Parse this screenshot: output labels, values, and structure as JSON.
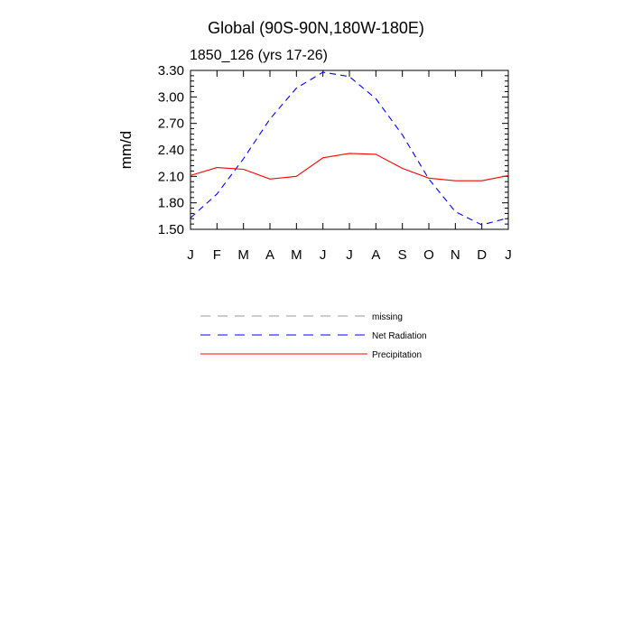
{
  "chart_data": {
    "type": "line",
    "title": "Global (90S-90N,180W-180E)",
    "subtitle": "1850_126 (yrs 17-26)",
    "xlabel": "",
    "ylabel": "mm/d",
    "ylim": [
      1.5,
      3.3
    ],
    "yticks": [
      "1.50",
      "1.80",
      "2.10",
      "2.40",
      "2.70",
      "3.00",
      "3.30"
    ],
    "categories": [
      "J",
      "F",
      "M",
      "A",
      "M",
      "J",
      "J",
      "A",
      "S",
      "O",
      "N",
      "D",
      "J"
    ],
    "series": [
      {
        "name": "Net Radiation",
        "style": "dashed",
        "color": "#0000ff",
        "values": [
          1.63,
          1.9,
          2.3,
          2.75,
          3.1,
          3.28,
          3.23,
          2.98,
          2.57,
          2.07,
          1.7,
          1.55,
          1.63
        ]
      },
      {
        "name": "Precipitation",
        "style": "solid",
        "color": "#ff0000",
        "values": [
          2.11,
          2.2,
          2.18,
          2.07,
          2.1,
          2.31,
          2.36,
          2.35,
          2.19,
          2.08,
          2.05,
          2.05,
          2.11
        ]
      }
    ],
    "grid": false,
    "legend": {
      "position": "below",
      "entries": [
        {
          "label": "missing",
          "style": "dashed",
          "color": "#999999"
        },
        {
          "label": "Net Radiation",
          "style": "dashed",
          "color": "#0000ff"
        },
        {
          "label": "Precipitation",
          "style": "solid",
          "color": "#ff0000"
        }
      ]
    }
  }
}
